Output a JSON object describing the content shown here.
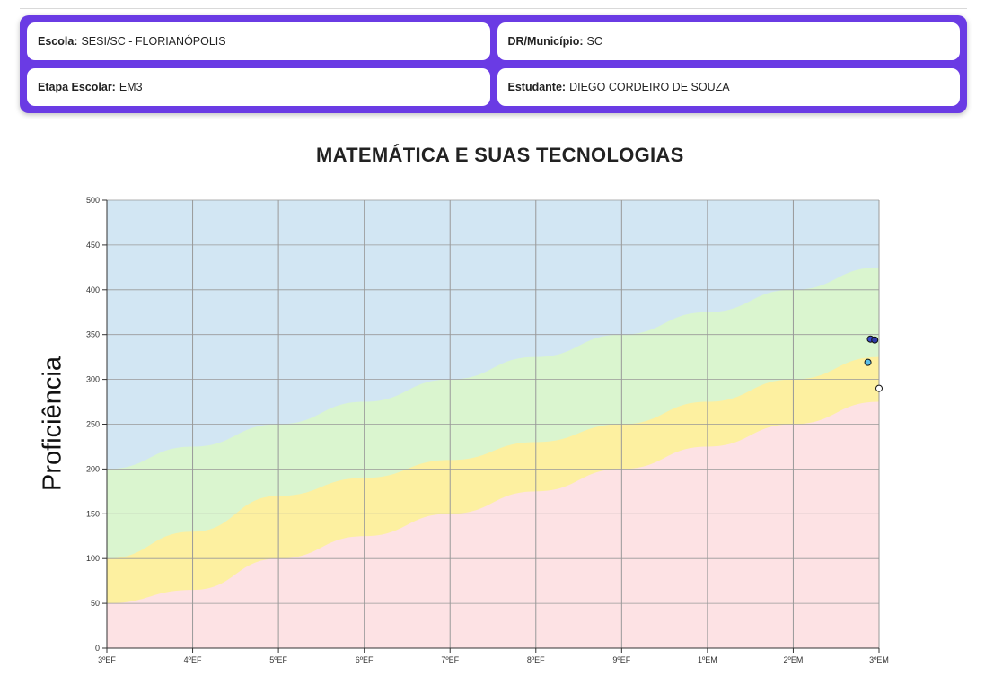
{
  "info": {
    "escola_label": "Escola:",
    "escola_value": "SESI/SC - FLORIANÓPOLIS",
    "dr_label": "DR/Município:",
    "dr_value": "SC",
    "etapa_label": "Etapa Escolar:",
    "etapa_value": "EM3",
    "estudante_label": "Estudante:",
    "estudante_value": "DIEGO CORDEIRO DE SOUZA"
  },
  "colors": {
    "panel": "#6a3be4",
    "band_advanced": "#d2e6f3",
    "band_proficient": "#daf5cf",
    "band_basic": "#fdf0a0",
    "band_below": "#fde2e4",
    "grid": "#999999"
  },
  "chart_data": {
    "type": "scatter",
    "title": "MATEMÁTICA E SUAS TECNOLOGIAS",
    "xlabel": "",
    "ylabel": "Proficiência",
    "categories": [
      "3ºEF",
      "4ºEF",
      "5ºEF",
      "6ºEF",
      "7ºEF",
      "8ºEF",
      "9ºEF",
      "1ºEM",
      "2ºEM",
      "3ºEM"
    ],
    "ylim": [
      0,
      500
    ],
    "yticks": [
      0,
      50,
      100,
      150,
      200,
      250,
      300,
      350,
      400,
      450,
      500
    ],
    "grid": true,
    "bands": [
      {
        "level": "lower1",
        "values": [
          50,
          65,
          100,
          125,
          150,
          175,
          200,
          225,
          250,
          275
        ]
      },
      {
        "level": "lower2",
        "values": [
          100,
          130,
          170,
          190,
          210,
          230,
          250,
          275,
          300,
          325
        ]
      },
      {
        "level": "lower3",
        "values": [
          200,
          225,
          250,
          275,
          300,
          325,
          350,
          375,
          400,
          425
        ]
      }
    ],
    "points": [
      {
        "x": 8.9,
        "y": 345,
        "color": "#3a4bc9"
      },
      {
        "x": 8.95,
        "y": 344,
        "color": "#2e3aa8"
      },
      {
        "x": 8.87,
        "y": 319,
        "color": "#5bbfe8"
      },
      {
        "x": 9.0,
        "y": 290,
        "color": "#ffffff"
      }
    ]
  }
}
